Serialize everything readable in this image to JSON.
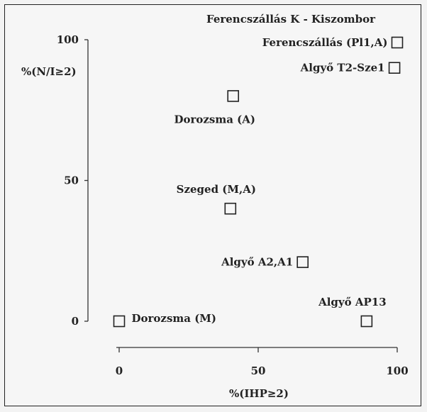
{
  "chart_data": {
    "type": "scatter",
    "title": "Ferencszállás K - Kiszombor",
    "xlabel": "%(IHP≥2)",
    "ylabel": "%(N/I≥2)",
    "xlim": [
      0,
      100
    ],
    "ylim": [
      0,
      100
    ],
    "xticks": [
      "0",
      "50",
      "100"
    ],
    "yticks": [
      "0",
      "50",
      "100"
    ],
    "grid": false,
    "points": [
      {
        "label": "Ferencszállás (Pl1,A)",
        "x": 100,
        "y": 99,
        "label_side": "left"
      },
      {
        "label": "Algyő T2-Sze1",
        "x": 99,
        "y": 90,
        "label_side": "left"
      },
      {
        "label": "Dorozsma (A)",
        "x": 41,
        "y": 80,
        "label_side": "below"
      },
      {
        "label": "Szeged (M,A)",
        "x": 40,
        "y": 40,
        "label_side": "above"
      },
      {
        "label": "Algyő A2,A1",
        "x": 66,
        "y": 21,
        "label_side": "left"
      },
      {
        "label": "Algyő AP13",
        "x": 89,
        "y": 0,
        "label_side": "above"
      },
      {
        "label": "Dorozsma (M)",
        "x": 0,
        "y": 0,
        "label_side": "right"
      }
    ]
  }
}
